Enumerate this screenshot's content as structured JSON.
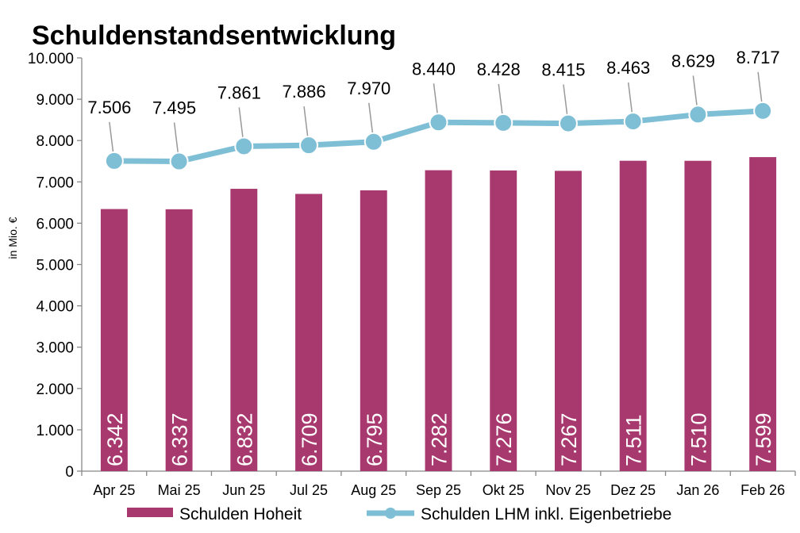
{
  "chart_data": {
    "type": "bar",
    "title": "Schuldenstandsentwicklung",
    "xlabel": "",
    "ylabel": "in Mio. €",
    "ylim": [
      0,
      10000
    ],
    "yticks": [
      0,
      1000,
      2000,
      3000,
      4000,
      5000,
      6000,
      7000,
      8000,
      9000,
      10000
    ],
    "ytick_labels": [
      "0",
      "1.000",
      "2.000",
      "3.000",
      "4.000",
      "5.000",
      "6.000",
      "7.000",
      "8.000",
      "9.000",
      "10.000"
    ],
    "categories": [
      "Apr 25",
      "Mai 25",
      "Jun 25",
      "Jul 25",
      "Aug 25",
      "Sep 25",
      "Okt 25",
      "Nov 25",
      "Dez 25",
      "Jan 26",
      "Feb 26"
    ],
    "series": [
      {
        "name": "Schulden Hoheit",
        "type": "bar",
        "color": "#a8396f",
        "values": [
          6342,
          6337,
          6832,
          6709,
          6795,
          7282,
          7276,
          7267,
          7511,
          7510,
          7599
        ],
        "labels": [
          "6.342",
          "6.337",
          "6.832",
          "6.709",
          "6.795",
          "7.282",
          "7.276",
          "7.267",
          "7.511",
          "7.510",
          "7.599"
        ]
      },
      {
        "name": "Schulden LHM inkl. Eigenbetriebe",
        "type": "line",
        "color": "#7fbfd6",
        "values": [
          7506,
          7495,
          7861,
          7886,
          7970,
          8440,
          8428,
          8415,
          8463,
          8629,
          8717
        ],
        "labels": [
          "7.506",
          "7.495",
          "7.861",
          "7.886",
          "7.970",
          "8.440",
          "8.428",
          "8.415",
          "8.463",
          "8.629",
          "8.717"
        ]
      }
    ],
    "grid": false,
    "legend_position": "bottom"
  }
}
